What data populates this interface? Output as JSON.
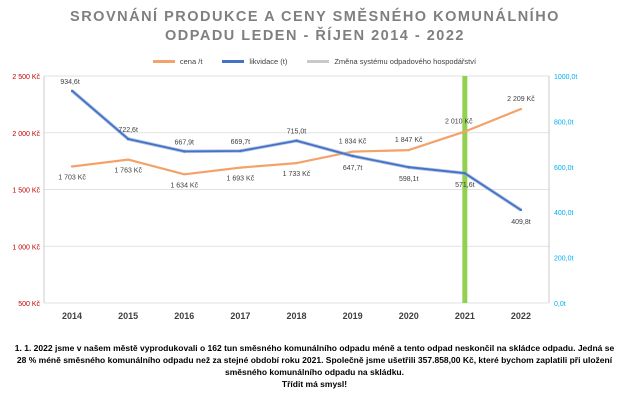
{
  "chart_data": {
    "type": "line",
    "title_lines": [
      "SROVNÁNÍ PRODUKCE A CENY SMĚSNÉHO KOMUNÁLNÍHO",
      "ODPADU  LEDEN - ŘÍJEN 2014 - 2022"
    ],
    "categories": [
      "2014",
      "2015",
      "2016",
      "2017",
      "2018",
      "2019",
      "2020",
      "2021",
      "2022"
    ],
    "series": [
      {
        "name": "cena /t",
        "axis": "left",
        "color": "#f4a26b",
        "values": [
          1703,
          1763,
          1634,
          1693,
          1733,
          1834,
          1847,
          2010,
          2209
        ],
        "labels": [
          "1 703 Kč",
          "1 763 Kč",
          "1 634 Kč",
          "1 693 Kč",
          "1 733 Kč",
          "1 834 Kč",
          "1 847 Kč",
          "2 010 Kč",
          "2 209 Kč"
        ]
      },
      {
        "name": "likvidace (t)",
        "axis": "right",
        "color": "#4472c4",
        "values": [
          934.6,
          722.6,
          667.9,
          669.7,
          715.0,
          647.7,
          598.1,
          571.6,
          409.8
        ],
        "labels": [
          "934,6t",
          "722,6t",
          "667,9t",
          "669,7t",
          "715,0t",
          "647,7t",
          "598,1t",
          "571,6t",
          "409,8t"
        ]
      }
    ],
    "marker_series": {
      "name": "Změna systému odpadového hospodářství",
      "category": "2021",
      "color": "#92d050"
    },
    "y_left": {
      "min": 500,
      "max": 2500,
      "ticks": [
        500,
        1000,
        1500,
        2000,
        2500
      ],
      "tick_labels": [
        "500 Kč",
        "1 000 Kč",
        "1 500 Kč",
        "2 000 Kč",
        "2 500 Kč"
      ],
      "color": "#c00000"
    },
    "y_right": {
      "min": 0,
      "max": 1000,
      "ticks": [
        0,
        200,
        400,
        600,
        800,
        1000
      ],
      "tick_labels": [
        "0,0t",
        "200,0t",
        "400,0t",
        "600,0t",
        "800,0t",
        "1000,0t"
      ],
      "color": "#00b0f0"
    },
    "legend_position": "top"
  },
  "caption_lines": [
    "1. 1. 2022 jsme v našem městě vyprodukovali o 162 tun směsného komunálního odpadu méně a tento odpad neskončil na skládce odpadu. Jedná se",
    "28 % méně směsného komunálního odpadu než za stejné období roku 2021. Společně jsme ušetřili 357.858,00 Kč, které bychom zaplatili při uložení",
    "směsného komunálního odpadu na skládku.",
    "Třídit má smysl!"
  ]
}
